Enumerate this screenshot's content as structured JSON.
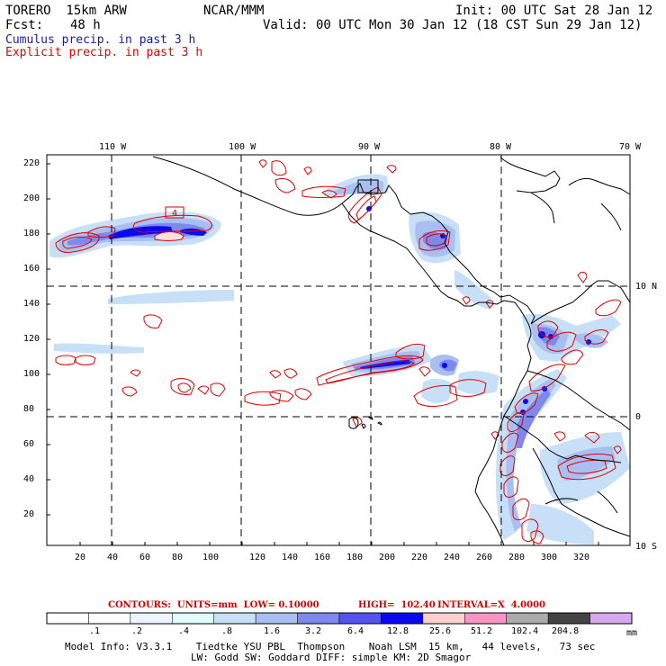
{
  "header": {
    "model": "TORERO  15km ARW",
    "org": "NCAR/MMM",
    "init": "Init: 00 UTC Sat 28 Jan 12",
    "fcst_label": "Fcst:",
    "fcst_value": "48 h",
    "valid": "Valid: 00 UTC Mon 30 Jan 12 (18 CST Sun 29 Jan 12)"
  },
  "legend": {
    "cumulus": "Cumulus precip. in past 3 h",
    "explicit": "Explicit precip. in past 3 h",
    "cumulus_color": "#1a1aa8",
    "explicit_color": "#e00000"
  },
  "map": {
    "lon_labels": [
      "110 W",
      "100 W",
      "90 W",
      "80 W",
      "70 W"
    ],
    "lat_labels": [
      "10 N",
      "0",
      "10 S"
    ],
    "y_ticks": [
      "220",
      "200",
      "180",
      "160",
      "140",
      "120",
      "100",
      "80",
      "60",
      "40",
      "20"
    ],
    "x_ticks": [
      "20",
      "40",
      "60",
      "80",
      "100",
      "120",
      "140",
      "160",
      "180",
      "200",
      "220",
      "240",
      "260",
      "280",
      "300",
      "320"
    ],
    "box_label": "4"
  },
  "contours": {
    "units": "CONTOURS:  UNITS=mm  LOW= 0.10000",
    "high": "HIGH=  102.40",
    "interval": "INTERVAL=X  4.0000"
  },
  "colorbar": {
    "labels": [
      ".1",
      ".2",
      ".4",
      ".8",
      "1.6",
      "3.2",
      "6.4",
      "12.8",
      "25.6",
      "51.2",
      "102.4",
      "204.8"
    ],
    "unit": "mm",
    "colors": [
      "#ffffff",
      "#ffffff",
      "#ebf4ff",
      "#e1fbff",
      "#c7e0f7",
      "#a9bff2",
      "#7f88ee",
      "#5454f0",
      "#0a0af2",
      "#fbd1d0",
      "#f795c4",
      "#aaaaaa",
      "#444444",
      "#d8a8f0"
    ]
  },
  "footer": {
    "line1": "Model Info: V3.3.1    Tiedtke YSU PBL  Thompson    Noah LSM  15 km,   44 levels,   73 sec",
    "line2": "LW: Godd SW: Goddard DIFF: simple KM: 2D Smagor"
  }
}
